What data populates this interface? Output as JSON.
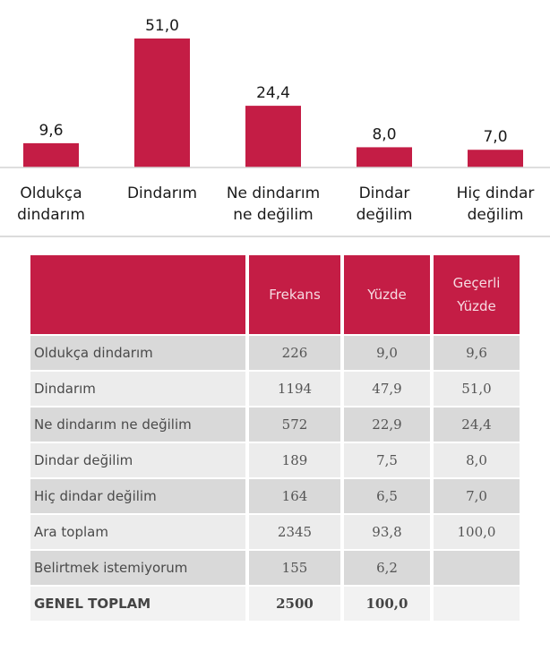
{
  "chart_data": {
    "type": "bar",
    "categories": [
      "Oldukça\ndindarım",
      "Dindarım",
      "Ne dindarım\nne değilim",
      "Dindar\ndeğilim",
      "Hiç dindar\ndeğilim"
    ],
    "values": [
      9.6,
      51.0,
      24.4,
      8.0,
      7.0
    ],
    "value_labels": [
      "9,6",
      "51,0",
      "24,4",
      "8,0",
      "7,0"
    ],
    "ylim": [
      0,
      51
    ],
    "bar_color": "#c41d45"
  },
  "table": {
    "headers": [
      "",
      "Frekans",
      "Yüzde",
      "Geçerli\nYüzde"
    ],
    "rows": [
      {
        "label": "Oldukça dindarım",
        "frekans": "226",
        "yuzde": "9,0",
        "gecerli": "9,6"
      },
      {
        "label": "Dindarım",
        "frekans": "1194",
        "yuzde": "47,9",
        "gecerli": "51,0"
      },
      {
        "label": "Ne dindarım ne değilim",
        "frekans": "572",
        "yuzde": "22,9",
        "gecerli": "24,4"
      },
      {
        "label": "Dindar değilim",
        "frekans": "189",
        "yuzde": "7,5",
        "gecerli": "8,0"
      },
      {
        "label": "Hiç dindar değilim",
        "frekans": "164",
        "yuzde": "6,5",
        "gecerli": "7,0"
      },
      {
        "label": " Ara toplam",
        "frekans": "2345",
        "yuzde": "93,8",
        "gecerli": "100,0"
      },
      {
        "label": "Belirtmek istemiyorum",
        "frekans": "155",
        "yuzde": "6,2",
        "gecerli": ""
      },
      {
        "label": " GENEL TOPLAM",
        "frekans": "2500",
        "yuzde": "100,0",
        "gecerli": ""
      }
    ]
  }
}
